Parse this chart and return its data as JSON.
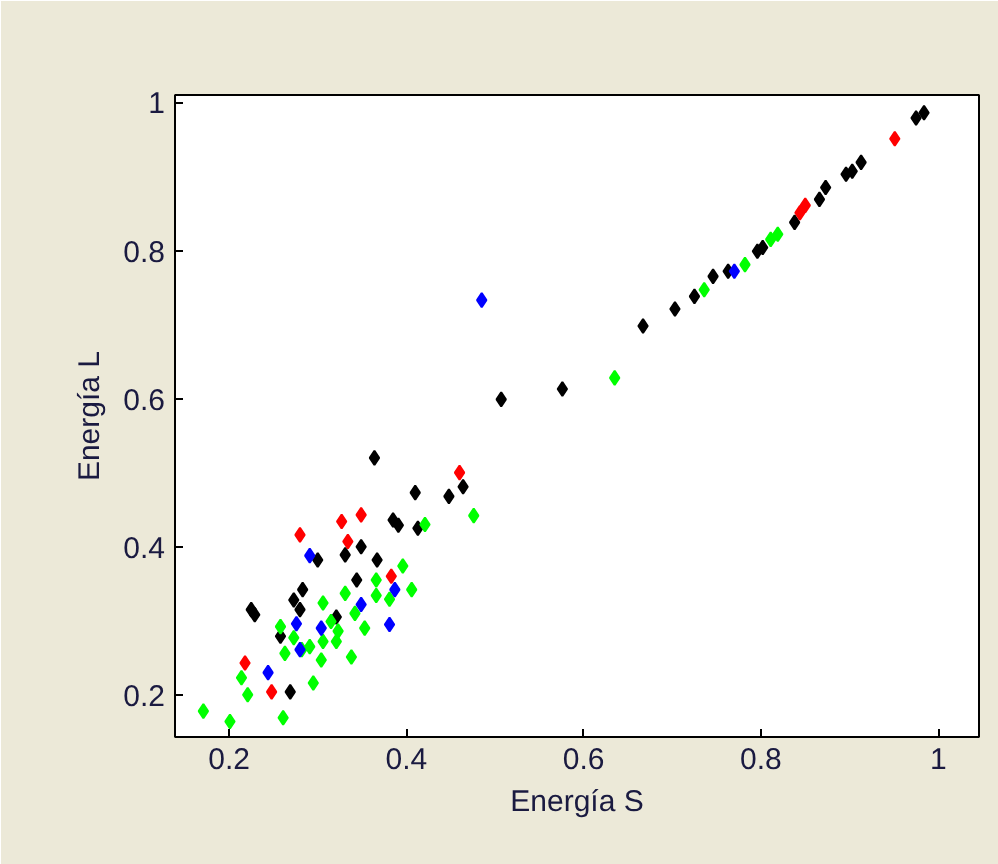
{
  "chart_data": {
    "type": "scatter",
    "xlabel": "Energía S",
    "ylabel": "Energía L",
    "xlim": [
      0.139,
      1.046
    ],
    "ylim": [
      0.143,
      1.01
    ],
    "xticks": [
      0.2,
      0.4,
      0.6,
      0.8,
      1
    ],
    "yticks": [
      0.2,
      0.4,
      0.6,
      0.8,
      1
    ],
    "marker": "diamond",
    "series": [
      {
        "color": "#000000",
        "x": [
          0.364,
          0.41,
          0.448,
          0.464,
          0.385,
          0.391,
          0.413,
          0.349,
          0.367,
          0.331,
          0.3,
          0.344,
          0.283,
          0.273,
          0.28,
          0.225,
          0.229,
          0.321,
          0.258,
          0.269,
          0.507,
          0.576,
          0.667,
          0.703,
          0.725,
          0.746,
          0.763,
          0.796,
          0.802,
          0.838,
          0.866,
          0.873,
          0.896,
          0.903,
          0.913,
          0.975,
          0.984
        ],
        "values": [
          0.52,
          0.473,
          0.468,
          0.481,
          0.436,
          0.429,
          0.425,
          0.4,
          0.382,
          0.389,
          0.382,
          0.355,
          0.342,
          0.328,
          0.315,
          0.315,
          0.308,
          0.305,
          0.279,
          0.204,
          0.599,
          0.613,
          0.698,
          0.721,
          0.738,
          0.765,
          0.772,
          0.799,
          0.804,
          0.838,
          0.869,
          0.885,
          0.903,
          0.907,
          0.919,
          0.979,
          0.986
        ]
      },
      {
        "color": "#ff0000",
        "x": [
          0.46,
          0.349,
          0.327,
          0.28,
          0.334,
          0.383,
          0.218,
          0.248,
          0.844,
          0.85,
          0.951
        ],
        "values": [
          0.5,
          0.443,
          0.434,
          0.416,
          0.407,
          0.36,
          0.243,
          0.204,
          0.851,
          0.861,
          0.951
        ]
      },
      {
        "color": "#0000ff",
        "x": [
          0.291,
          0.387,
          0.349,
          0.276,
          0.304,
          0.28,
          0.381,
          0.244,
          0.485,
          0.77
        ],
        "values": [
          0.388,
          0.342,
          0.322,
          0.296,
          0.29,
          0.261,
          0.295,
          0.23,
          0.733,
          0.772
        ]
      },
      {
        "color": "#00ff00",
        "x": [
          0.421,
          0.476,
          0.396,
          0.366,
          0.406,
          0.331,
          0.366,
          0.381,
          0.306,
          0.342,
          0.315,
          0.353,
          0.323,
          0.258,
          0.273,
          0.291,
          0.306,
          0.321,
          0.282,
          0.263,
          0.304,
          0.338,
          0.214,
          0.221,
          0.295,
          0.261,
          0.201,
          0.171,
          0.635,
          0.736,
          0.782,
          0.811,
          0.819
        ],
        "values": [
          0.43,
          0.442,
          0.374,
          0.355,
          0.342,
          0.337,
          0.334,
          0.329,
          0.324,
          0.31,
          0.299,
          0.29,
          0.286,
          0.292,
          0.277,
          0.265,
          0.272,
          0.272,
          0.261,
          0.256,
          0.247,
          0.251,
          0.223,
          0.2,
          0.216,
          0.169,
          0.164,
          0.178,
          0.628,
          0.747,
          0.781,
          0.815,
          0.822
        ]
      }
    ]
  }
}
